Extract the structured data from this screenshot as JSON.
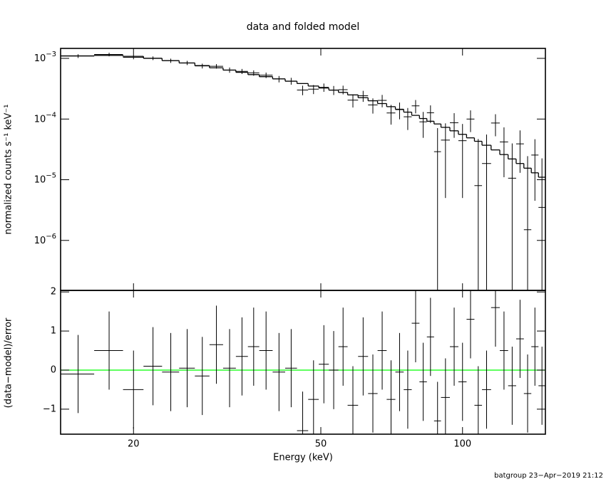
{
  "chart_data": [
    {
      "type": "errorbar",
      "title": "data and folded model",
      "ylabel": "normalized counts s⁻¹ keV⁻¹",
      "xscale": "log",
      "yscale": "log",
      "xlim": [
        14,
        150
      ],
      "ylim": [
        1.5e-07,
        0.00146
      ],
      "yticks": [
        {
          "value": 0.001,
          "label": "10",
          "exponent": "−3"
        },
        {
          "value": 0.0001,
          "label": "10",
          "exponent": "−4"
        },
        {
          "value": 1e-05,
          "label": "10",
          "exponent": "−5"
        },
        {
          "value": 1e-06,
          "label": "10",
          "exponent": "−6"
        }
      ],
      "color": "#000000",
      "x": [
        15.25,
        17.75,
        20,
        22,
        24,
        26,
        28,
        30,
        32,
        34,
        36,
        38.25,
        40.75,
        43.25,
        45.75,
        48.25,
        50.75,
        53.25,
        55.75,
        58.5,
        61.5,
        64.5,
        67.5,
        70.5,
        73.5,
        76.5,
        79.5,
        82.5,
        85.5,
        88.5,
        92,
        96,
        100,
        104,
        108,
        112.5,
        117.5,
        122.5,
        127.5,
        132.5,
        137.5,
        142.5,
        147.5
      ],
      "xerr": [
        1.25,
        1.25,
        1,
        1,
        1,
        1,
        1,
        1,
        1,
        1,
        1,
        1.25,
        1.25,
        1.25,
        1.25,
        1.25,
        1.25,
        1.25,
        1.25,
        1.5,
        1.5,
        1.5,
        1.5,
        1.5,
        1.5,
        1.5,
        1.5,
        1.5,
        1.5,
        1.5,
        2,
        2,
        2,
        2,
        2,
        2.5,
        2.5,
        2.5,
        2.5,
        2.5,
        2.5,
        2.5,
        2.5
      ],
      "values": [
        0.001092,
        0.001159,
        0.001042,
        0.001007,
        0.000916,
        0.000843,
        0.00075,
        0.000741,
        0.000643,
        0.000611,
        0.000576,
        0.000528,
        0.000457,
        0.000423,
        0.000301,
        0.000311,
        0.000333,
        0.0003,
        0.000305,
        0.000205,
        0.000242,
        0.000171,
        0.000203,
        0.000126,
        0.000143,
        0.000109,
        0.000165,
        9e-05,
        0.000127,
        2.9e-05,
        4.5e-05,
        8.7e-05,
        4.4e-05,
        0.0001,
        8e-06,
        1.85e-05,
        8.6e-05,
        4.2e-05,
        1.06e-05,
        3.9e-05,
        1.5e-06,
        2.55e-05,
        3.5e-06
      ],
      "errors": [
        7.7e-05,
        7.8e-05,
        7.6e-05,
        7e-05,
        7.4e-05,
        6.7e-05,
        6.8e-05,
        6.3e-05,
        6.4e-05,
        5.9e-05,
        5.9e-05,
        5.5e-05,
        5.5e-05,
        5.5e-05,
        5.4e-05,
        5.3e-05,
        5.2e-05,
        5.1e-05,
        5e-05,
        5e-05,
        5e-05,
        4.8e-05,
        4.7e-05,
        4.5e-05,
        4.4e-05,
        4.3e-05,
        4.1e-05,
        4.1e-05,
        4.1e-05,
        4.2e-05,
        4e-05,
        3.8e-05,
        3.9e-05,
        3.9e-05,
        3.9e-05,
        3.7e-05,
        3.4e-05,
        3.1e-05,
        2.9e-05,
        2.6e-05,
        2.3e-05,
        2.1e-05,
        1.9e-05
      ],
      "model": [
        0.0011,
        0.00112,
        0.00108,
        0.001,
        0.00092,
        0.00084,
        0.00076,
        0.0007,
        0.00064,
        0.00059,
        0.00054,
        0.0005,
        0.00046,
        0.00042,
        0.000385,
        0.00035,
        0.000325,
        0.0003,
        0.000275,
        0.00025,
        0.000225,
        0.0002,
        0.00018,
        0.00016,
        0.000145,
        0.00013,
        0.000115,
        0.000102,
        9.2e-05,
        8.3e-05,
        7.3e-05,
        6.4e-05,
        5.6e-05,
        4.9e-05,
        4.3e-05,
        3.7e-05,
        3.1e-05,
        2.6e-05,
        2.2e-05,
        1.85e-05,
        1.55e-05,
        1.3e-05,
        1.1e-05
      ]
    },
    {
      "type": "errorbar",
      "ylabel": "(data−model)/error",
      "xlabel": "Energy (keV)",
      "xscale": "log",
      "xlim": [
        14,
        150
      ],
      "xticks": [
        20,
        50,
        100
      ],
      "ylim": [
        -1.64,
        2.04
      ],
      "yticks": [
        {
          "value": -1,
          "label": "−1"
        },
        0,
        1,
        2
      ],
      "color": "#000000",
      "hline": 0,
      "hline_color": "#00ff00",
      "x": [
        15.25,
        17.75,
        20,
        22,
        24,
        26,
        28,
        30,
        32,
        34,
        36,
        38.25,
        40.75,
        43.25,
        45.75,
        48.25,
        50.75,
        53.25,
        55.75,
        58.5,
        61.5,
        64.5,
        67.5,
        70.5,
        73.5,
        76.5,
        79.5,
        82.5,
        85.5,
        88.5,
        92,
        96,
        100,
        104,
        108,
        112.5,
        117.5,
        122.5,
        127.5,
        132.5,
        137.5,
        142.5,
        147.5
      ],
      "xerr": [
        1.25,
        1.25,
        1,
        1,
        1,
        1,
        1,
        1,
        1,
        1,
        1,
        1.25,
        1.25,
        1.25,
        1.25,
        1.25,
        1.25,
        1.25,
        1.25,
        1.5,
        1.5,
        1.5,
        1.5,
        1.5,
        1.5,
        1.5,
        1.5,
        1.5,
        1.5,
        1.5,
        2,
        2,
        2,
        2,
        2,
        2.5,
        2.5,
        2.5,
        2.5,
        2.5,
        2.5,
        2.5,
        2.5
      ],
      "values": [
        -0.1,
        0.5,
        -0.5,
        0.1,
        -0.05,
        0.05,
        -0.15,
        0.65,
        0.05,
        0.35,
        0.6,
        0.5,
        -0.05,
        0.05,
        -1.55,
        -0.75,
        0.15,
        0,
        0.6,
        -0.9,
        0.35,
        -0.6,
        0.5,
        -0.75,
        -0.05,
        -0.5,
        1.2,
        -0.3,
        0.85,
        -1.3,
        -0.7,
        0.6,
        -0.3,
        1.3,
        -0.9,
        -0.5,
        1.6,
        0.5,
        -0.4,
        0.8,
        -0.6,
        0.6,
        -0.4
      ],
      "errors": [
        1,
        1,
        1,
        1,
        1,
        1,
        1,
        1,
        1,
        1,
        1,
        1,
        1,
        1,
        1,
        1,
        1,
        1,
        1,
        1,
        1,
        1,
        1,
        1,
        1,
        1,
        1,
        1,
        1,
        1,
        1,
        1,
        1,
        1,
        1,
        1,
        1,
        1,
        1,
        1,
        1,
        1,
        1
      ]
    }
  ],
  "footer": "batgroup 23−Apr−2019 21:12"
}
